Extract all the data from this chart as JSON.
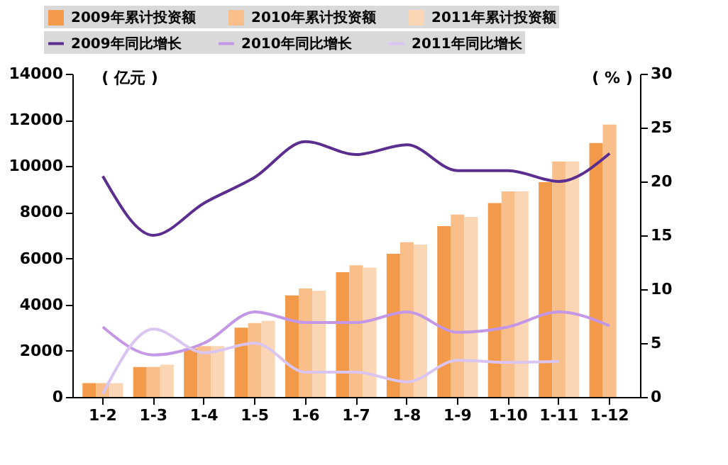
{
  "chart_data": {
    "type": "bar",
    "ylabel": "( 亿元 )",
    "y2label": "( % )",
    "categories": [
      "1-2",
      "1-3",
      "1-4",
      "1-5",
      "1-6",
      "1-7",
      "1-8",
      "1-9",
      "1-10",
      "1-11",
      "1-12"
    ],
    "series": [
      {
        "name": "2009年累计投资额",
        "color": "#f39a4a",
        "values": [
          600,
          1300,
          2100,
          3000,
          4400,
          5400,
          6200,
          7400,
          8400,
          9300,
          11000
        ]
      },
      {
        "name": "2010年累计投资额",
        "color": "#f8bf8a",
        "values": [
          600,
          1300,
          2200,
          3200,
          4700,
          5700,
          6700,
          7900,
          8900,
          10200,
          11800
        ]
      },
      {
        "name": "2011年累计投资额",
        "color": "#fbd6b4",
        "values": [
          600,
          1400,
          2200,
          3300,
          4600,
          5600,
          6600,
          7800,
          8900,
          10200,
          null
        ]
      },
      {
        "name": "2009年同比增长",
        "type": "line",
        "axis": "y2",
        "color": "#5b2d8e",
        "values": [
          20.5,
          15.0,
          18.0,
          20.4,
          23.7,
          22.5,
          23.4,
          21.0,
          21.0,
          20.0,
          22.6
        ]
      },
      {
        "name": "2010年同比增长",
        "type": "line",
        "axis": "y2",
        "color": "#c497e6",
        "values": [
          6.5,
          3.9,
          5.0,
          7.9,
          6.9,
          6.9,
          7.9,
          6.0,
          6.5,
          7.9,
          6.6
        ]
      },
      {
        "name": "2011年同比增长",
        "type": "line",
        "axis": "y2",
        "color": "#d9c4f2",
        "values": [
          0.3,
          6.3,
          4.1,
          5.0,
          2.3,
          2.3,
          1.4,
          3.4,
          3.2,
          3.3,
          null
        ]
      }
    ],
    "ylim": [
      0,
      14000
    ],
    "yticks": [
      0,
      2000,
      4000,
      6000,
      8000,
      10000,
      12000,
      14000
    ],
    "y2lim": [
      0,
      30
    ],
    "y2ticks": [
      0,
      5,
      10,
      15,
      20,
      25,
      30
    ],
    "grid": false,
    "legend": "top"
  }
}
